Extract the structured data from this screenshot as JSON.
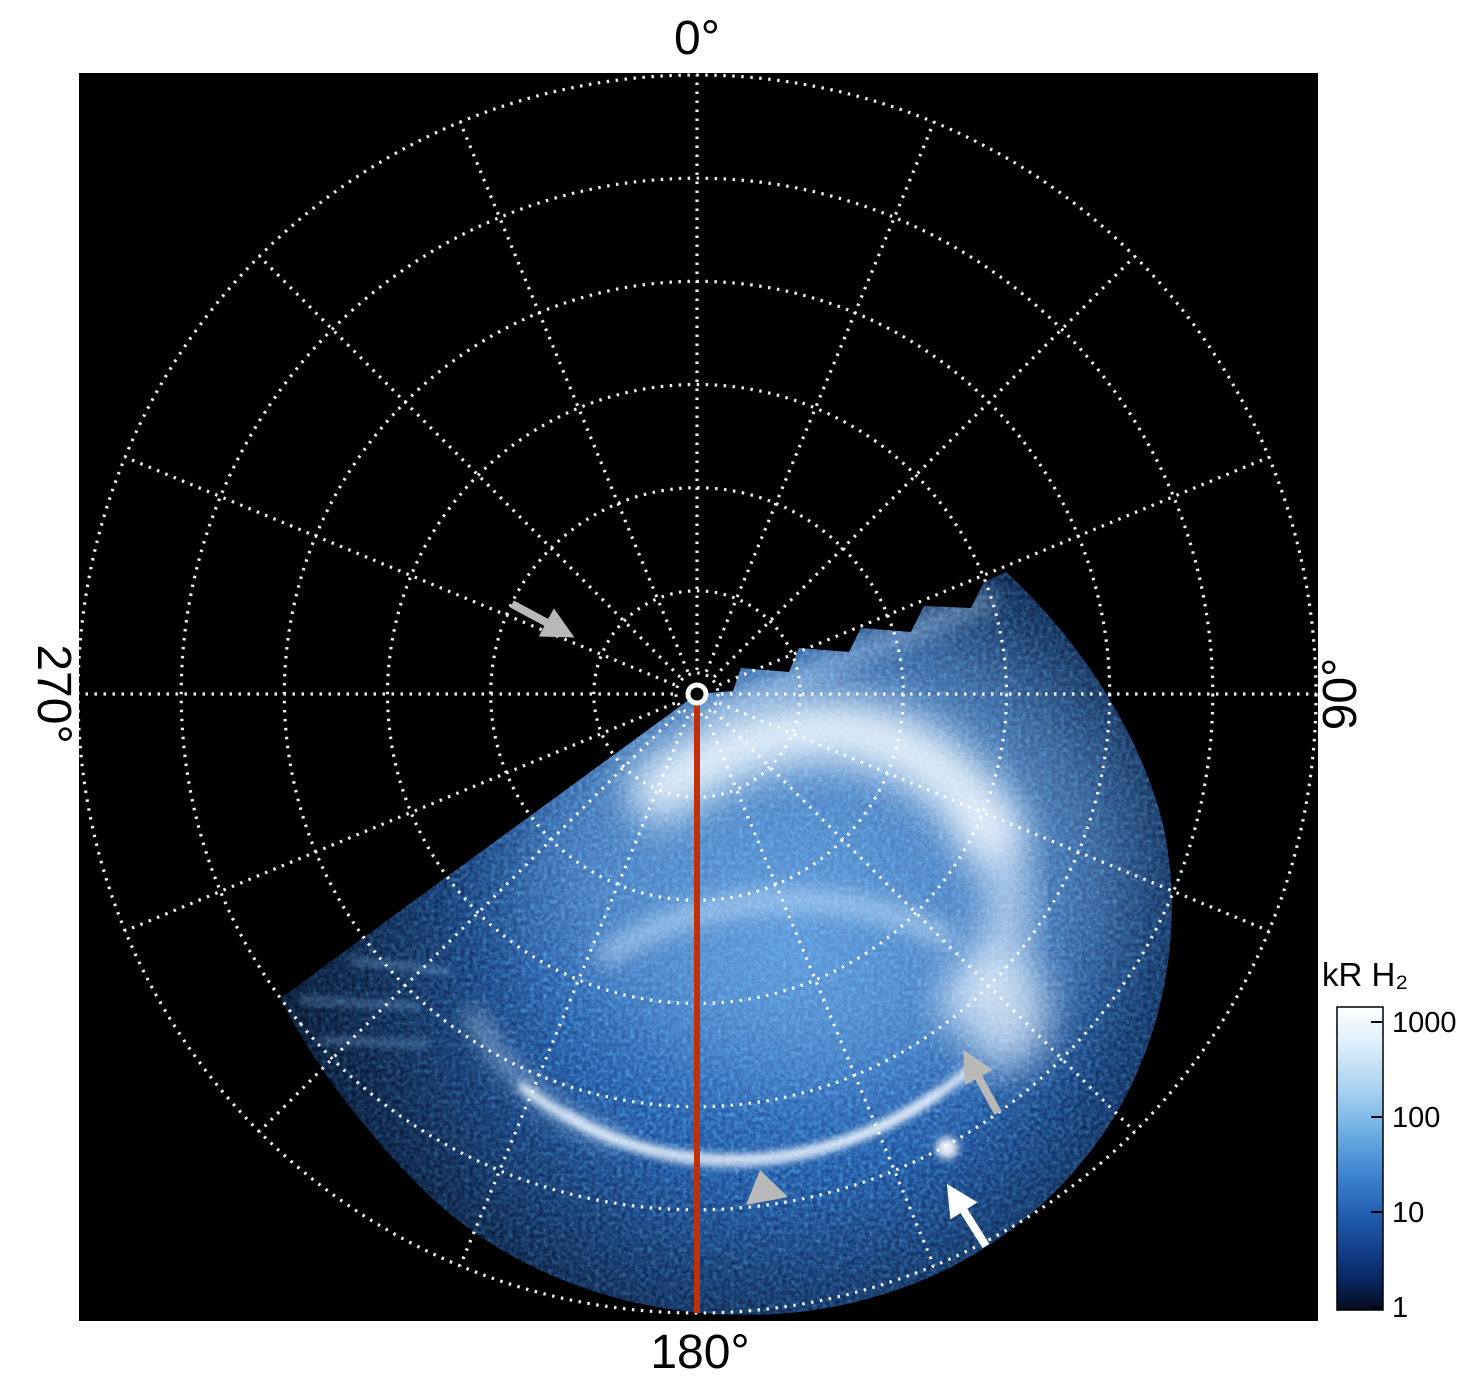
{
  "labels": {
    "top": "0°",
    "right": "90°",
    "bottom": "180°",
    "left": "270°"
  },
  "colorbar": {
    "title": "kR H₂",
    "ticks": [
      "1000",
      "100",
      "10",
      "1"
    ]
  },
  "colors": {
    "figure_background": "#ffffff",
    "plot_background": "#000000",
    "grid": "#ffffff",
    "meridian_line": "#c2300a",
    "arrow_gray": "#b9b9b9",
    "arrow_white": "#ffffff",
    "emission_base_blue": "#1c4a9a",
    "emission_bright": "#ffffff"
  },
  "chart_data": {
    "type": "heatmap",
    "projection": "polar",
    "title": "",
    "quantity": "auroral H2 emission brightness",
    "unit": "kR",
    "color_scale": {
      "type": "log",
      "min": 1,
      "max": 1000,
      "tick_values": [
        1000,
        100,
        10,
        1
      ],
      "label": "kR H₂",
      "colormap": "black-blue-white"
    },
    "azimuth_ticks_deg": [
      0,
      90,
      180,
      270
    ],
    "azimuth_tick_labels": [
      "0°",
      "90°",
      "180°",
      "270°"
    ],
    "grid": {
      "style": "dotted",
      "radial_rings": 6,
      "azimuth_step_deg": 22.5
    },
    "observed_sector_deg": [
      70,
      240
    ],
    "meridian_line_deg": 180,
    "features": [
      {
        "name": "main-bright-emission",
        "description": "large bright diffuse emission region",
        "azimuth_deg": [
          95,
          150
        ],
        "relative_radius": [
          0.1,
          0.55
        ]
      },
      {
        "name": "auroral-oval-arc",
        "description": "thin bright arc segment of the auroral oval",
        "azimuth_deg": [
          140,
          215
        ],
        "relative_radius": [
          0.7,
          0.8
        ]
      },
      {
        "name": "speckled-background",
        "description": "faint noisy blue emission filling the observed sector"
      }
    ],
    "annotations": [
      {
        "id": "gray-arrow-upper-left",
        "type": "arrow",
        "color": "gray",
        "direction": "down-right"
      },
      {
        "id": "gray-arrow-right",
        "type": "arrow",
        "color": "gray",
        "direction": "up-left"
      },
      {
        "id": "gray-arrowhead-bottom",
        "type": "arrowhead",
        "color": "gray",
        "direction": "up"
      },
      {
        "id": "white-arrow-bottom-right",
        "type": "arrow",
        "color": "white",
        "direction": "up-left"
      }
    ]
  }
}
